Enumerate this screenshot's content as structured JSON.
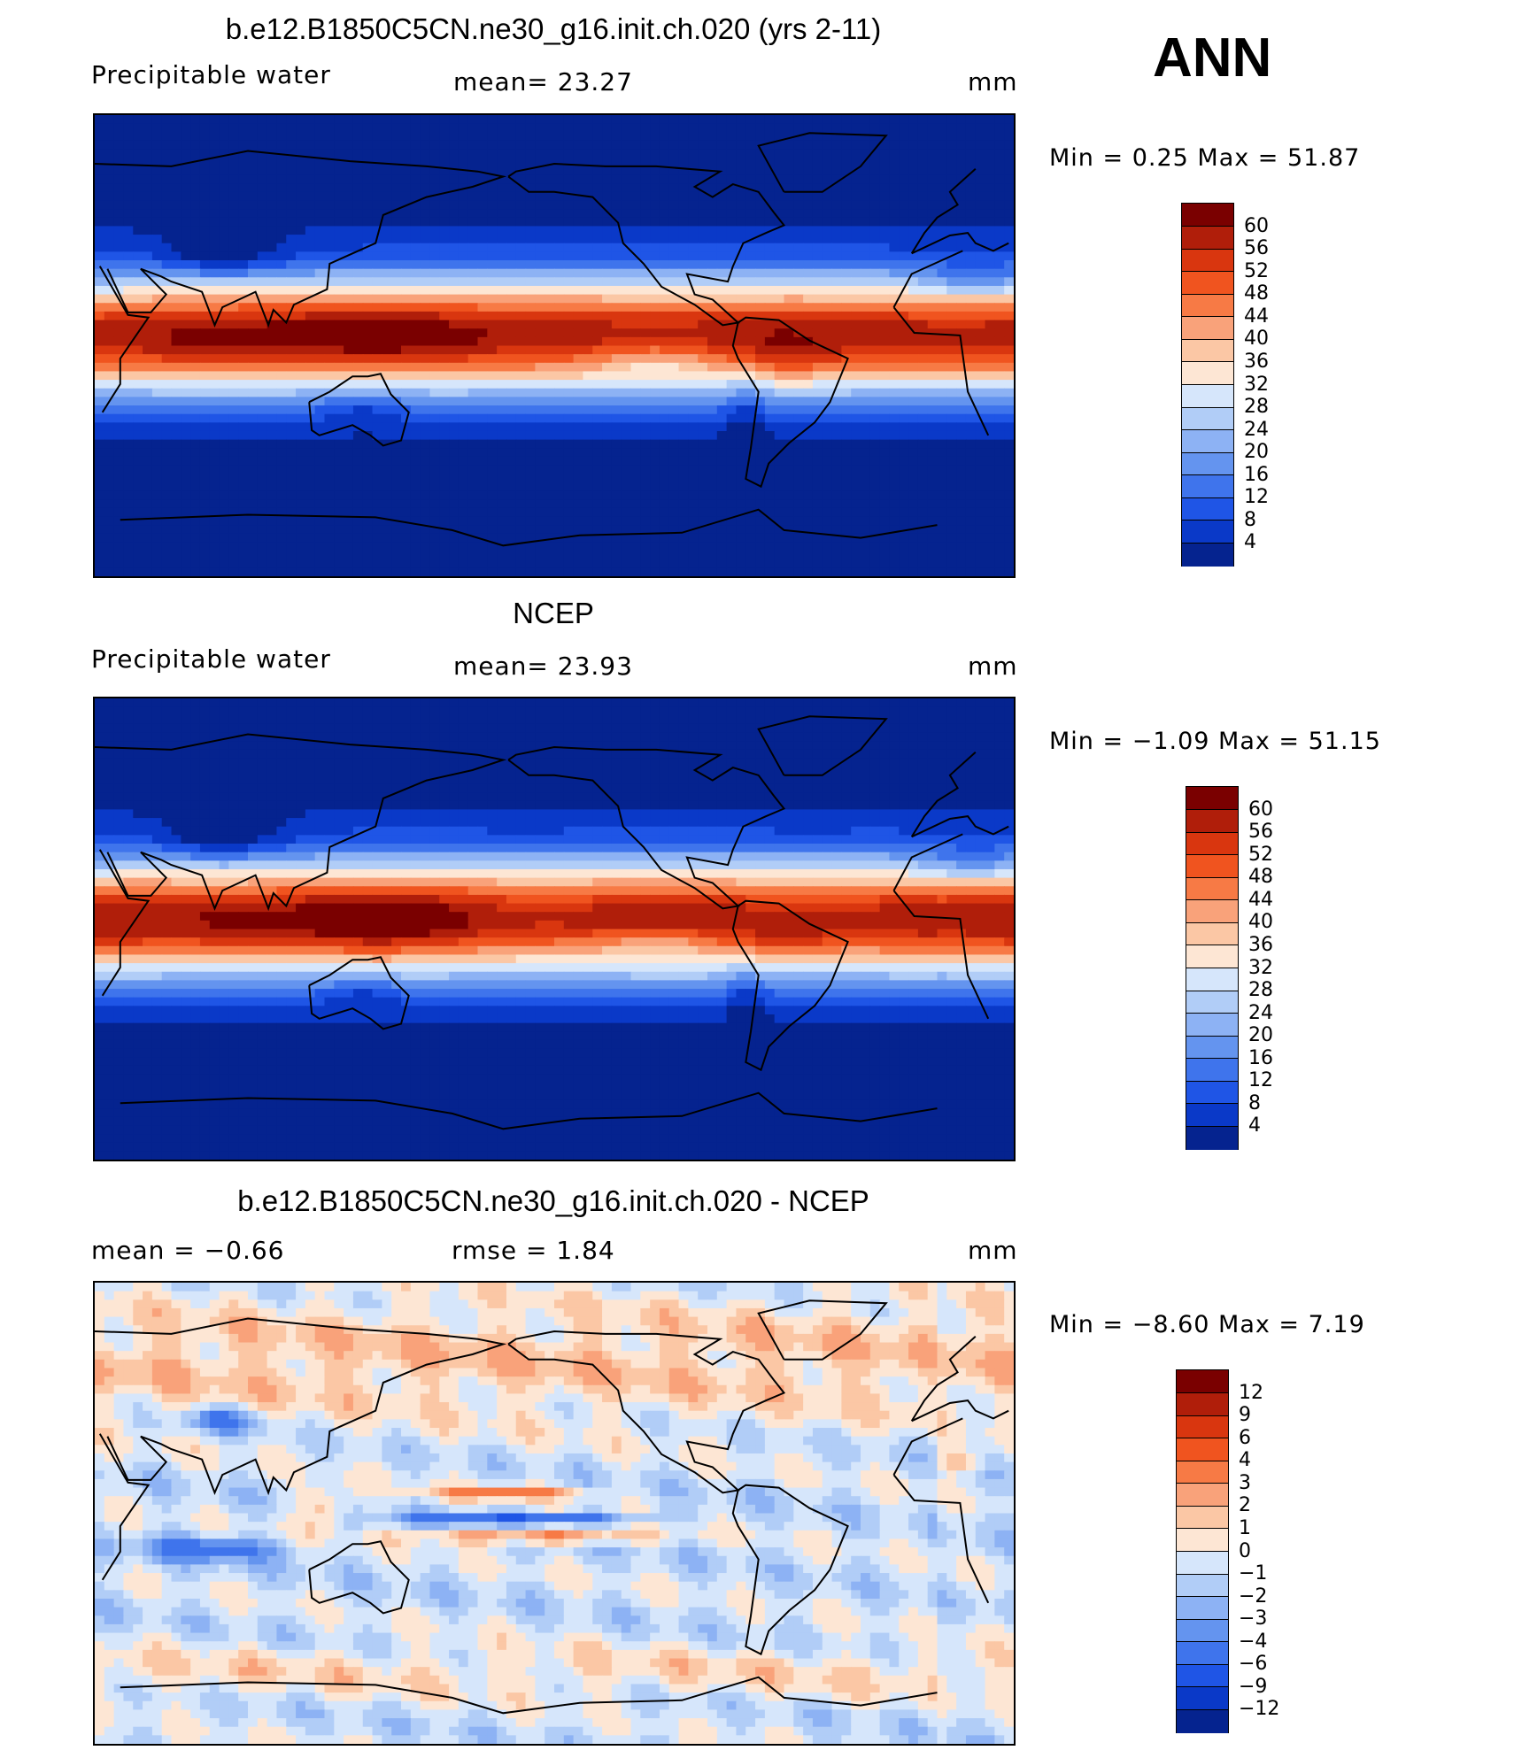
{
  "season": "ANN",
  "panels": [
    {
      "title": "b.e12.B1850C5CN.ne30_g16.init.ch.020 (yrs 2-11)",
      "left_label": "Precipitable  water",
      "mid_label": "mean=   23.27",
      "unit": "mm",
      "minmax": "Min  =     0.25  Max  =    51.87",
      "kind": "abs"
    },
    {
      "title": "NCEP",
      "left_label": "Precipitable  water",
      "mid_label": "mean=   23.93",
      "unit": "mm",
      "minmax": "Min  =   −1.09  Max  =    51.15",
      "kind": "abs"
    },
    {
      "title": "b.e12.B1850C5CN.ne30_g16.init.ch.020 - NCEP",
      "left_label": "mean  =    −0.66",
      "mid_label": "rmse  =     1.84",
      "unit": "mm",
      "minmax": "Min  =   −8.60  Max  =     7.19",
      "kind": "diff"
    }
  ],
  "chart_data": [
    {
      "type": "heatmap",
      "title": "b.e12.B1850C5CN.ne30_g16.init.ch.020 (yrs 2-11)",
      "variable": "Precipitable water",
      "units": "mm",
      "mean": 23.27,
      "min": 0.25,
      "max": 51.87,
      "colorbar_levels": [
        "60",
        "56",
        "52",
        "48",
        "44",
        "40",
        "36",
        "32",
        "28",
        "24",
        "20",
        "16",
        "12",
        "8",
        "4"
      ],
      "colors": [
        "#7a0000",
        "#b01e0a",
        "#d9360f",
        "#f0541f",
        "#f77a45",
        "#f9a27a",
        "#fbc7a5",
        "#fde6d4",
        "#d6e6fb",
        "#b1cdf7",
        "#8db2f4",
        "#6494ef",
        "#3f74ec",
        "#1f55e6",
        "#0a39c8",
        "#05238f"
      ]
    },
    {
      "type": "heatmap",
      "title": "NCEP",
      "variable": "Precipitable water",
      "units": "mm",
      "mean": 23.93,
      "min": -1.09,
      "max": 51.15,
      "colorbar_levels": [
        "60",
        "56",
        "52",
        "48",
        "44",
        "40",
        "36",
        "32",
        "28",
        "24",
        "20",
        "16",
        "12",
        "8",
        "4"
      ],
      "colors": [
        "#7a0000",
        "#b01e0a",
        "#d9360f",
        "#f0541f",
        "#f77a45",
        "#f9a27a",
        "#fbc7a5",
        "#fde6d4",
        "#d6e6fb",
        "#b1cdf7",
        "#8db2f4",
        "#6494ef",
        "#3f74ec",
        "#1f55e6",
        "#0a39c8",
        "#05238f"
      ]
    },
    {
      "type": "heatmap",
      "title": "b.e12.B1850C5CN.ne30_g16.init.ch.020 - NCEP",
      "units": "mm",
      "mean": -0.66,
      "rmse": 1.84,
      "min": -8.6,
      "max": 7.19,
      "colorbar_levels": [
        "12",
        "9",
        "6",
        "4",
        "3",
        "2",
        "1",
        "0",
        "−1",
        "−2",
        "−3",
        "−4",
        "−6",
        "−9",
        "−12"
      ],
      "colors": [
        "#7a0000",
        "#b01e0a",
        "#d9360f",
        "#f0541f",
        "#f77a45",
        "#f9a27a",
        "#fbc7a5",
        "#fde6d4",
        "#d6e6fb",
        "#b1cdf7",
        "#8db2f4",
        "#6494ef",
        "#3f74ec",
        "#1f55e6",
        "#0a39c8",
        "#05238f"
      ]
    }
  ]
}
